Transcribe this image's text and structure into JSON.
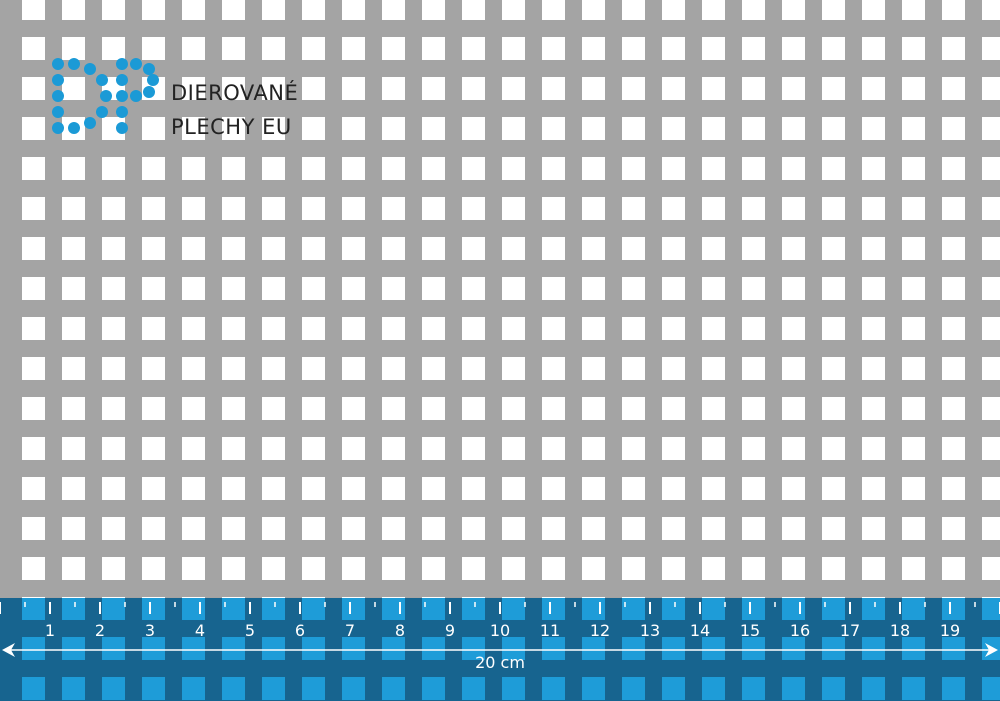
{
  "brand": {
    "line1": "DIEROVANÉ",
    "line2": "PLECHY EU",
    "logo_letters": "DP",
    "color": "#1b9ad6"
  },
  "ruler": {
    "numbers": [
      "1",
      "2",
      "3",
      "4",
      "5",
      "6",
      "7",
      "8",
      "9",
      "10",
      "11",
      "12",
      "13",
      "14",
      "15",
      "16",
      "17",
      "18",
      "19"
    ],
    "length_label": "20 cm",
    "band_color": "#17648f",
    "hole_color": "#1e9cd8"
  },
  "sheet": {
    "metal_color": "#a4a4a4",
    "hole_shape": "square"
  }
}
